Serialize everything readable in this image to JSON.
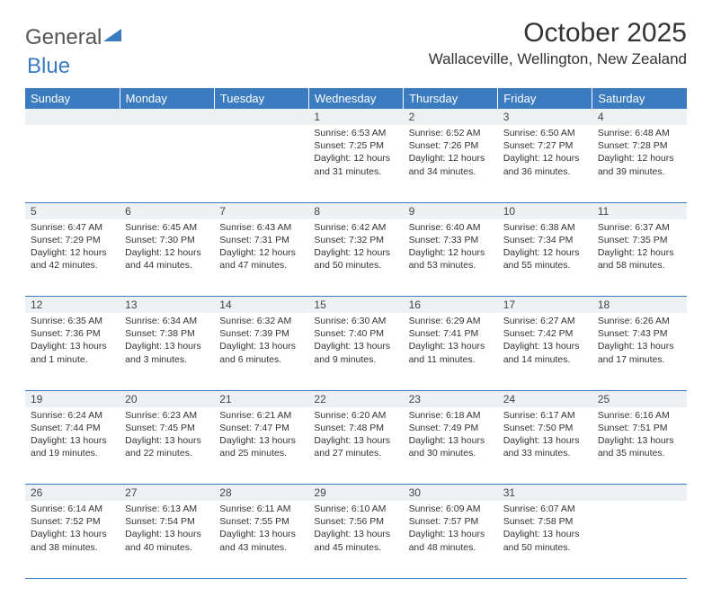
{
  "brand": {
    "part1": "General",
    "part2": "Blue"
  },
  "title": "October 2025",
  "location": "Wallaceville, Wellington, New Zealand",
  "colors": {
    "header_bg": "#3b7bbf",
    "daynum_bg": "#eef1f3",
    "border": "#3b7bbf"
  },
  "weekdays": [
    "Sunday",
    "Monday",
    "Tuesday",
    "Wednesday",
    "Thursday",
    "Friday",
    "Saturday"
  ],
  "weeks": [
    [
      null,
      null,
      null,
      {
        "n": "1",
        "sr": "6:53 AM",
        "ss": "7:25 PM",
        "dl": "12 hours and 31 minutes."
      },
      {
        "n": "2",
        "sr": "6:52 AM",
        "ss": "7:26 PM",
        "dl": "12 hours and 34 minutes."
      },
      {
        "n": "3",
        "sr": "6:50 AM",
        "ss": "7:27 PM",
        "dl": "12 hours and 36 minutes."
      },
      {
        "n": "4",
        "sr": "6:48 AM",
        "ss": "7:28 PM",
        "dl": "12 hours and 39 minutes."
      }
    ],
    [
      {
        "n": "5",
        "sr": "6:47 AM",
        "ss": "7:29 PM",
        "dl": "12 hours and 42 minutes."
      },
      {
        "n": "6",
        "sr": "6:45 AM",
        "ss": "7:30 PM",
        "dl": "12 hours and 44 minutes."
      },
      {
        "n": "7",
        "sr": "6:43 AM",
        "ss": "7:31 PM",
        "dl": "12 hours and 47 minutes."
      },
      {
        "n": "8",
        "sr": "6:42 AM",
        "ss": "7:32 PM",
        "dl": "12 hours and 50 minutes."
      },
      {
        "n": "9",
        "sr": "6:40 AM",
        "ss": "7:33 PM",
        "dl": "12 hours and 53 minutes."
      },
      {
        "n": "10",
        "sr": "6:38 AM",
        "ss": "7:34 PM",
        "dl": "12 hours and 55 minutes."
      },
      {
        "n": "11",
        "sr": "6:37 AM",
        "ss": "7:35 PM",
        "dl": "12 hours and 58 minutes."
      }
    ],
    [
      {
        "n": "12",
        "sr": "6:35 AM",
        "ss": "7:36 PM",
        "dl": "13 hours and 1 minute."
      },
      {
        "n": "13",
        "sr": "6:34 AM",
        "ss": "7:38 PM",
        "dl": "13 hours and 3 minutes."
      },
      {
        "n": "14",
        "sr": "6:32 AM",
        "ss": "7:39 PM",
        "dl": "13 hours and 6 minutes."
      },
      {
        "n": "15",
        "sr": "6:30 AM",
        "ss": "7:40 PM",
        "dl": "13 hours and 9 minutes."
      },
      {
        "n": "16",
        "sr": "6:29 AM",
        "ss": "7:41 PM",
        "dl": "13 hours and 11 minutes."
      },
      {
        "n": "17",
        "sr": "6:27 AM",
        "ss": "7:42 PM",
        "dl": "13 hours and 14 minutes."
      },
      {
        "n": "18",
        "sr": "6:26 AM",
        "ss": "7:43 PM",
        "dl": "13 hours and 17 minutes."
      }
    ],
    [
      {
        "n": "19",
        "sr": "6:24 AM",
        "ss": "7:44 PM",
        "dl": "13 hours and 19 minutes."
      },
      {
        "n": "20",
        "sr": "6:23 AM",
        "ss": "7:45 PM",
        "dl": "13 hours and 22 minutes."
      },
      {
        "n": "21",
        "sr": "6:21 AM",
        "ss": "7:47 PM",
        "dl": "13 hours and 25 minutes."
      },
      {
        "n": "22",
        "sr": "6:20 AM",
        "ss": "7:48 PM",
        "dl": "13 hours and 27 minutes."
      },
      {
        "n": "23",
        "sr": "6:18 AM",
        "ss": "7:49 PM",
        "dl": "13 hours and 30 minutes."
      },
      {
        "n": "24",
        "sr": "6:17 AM",
        "ss": "7:50 PM",
        "dl": "13 hours and 33 minutes."
      },
      {
        "n": "25",
        "sr": "6:16 AM",
        "ss": "7:51 PM",
        "dl": "13 hours and 35 minutes."
      }
    ],
    [
      {
        "n": "26",
        "sr": "6:14 AM",
        "ss": "7:52 PM",
        "dl": "13 hours and 38 minutes."
      },
      {
        "n": "27",
        "sr": "6:13 AM",
        "ss": "7:54 PM",
        "dl": "13 hours and 40 minutes."
      },
      {
        "n": "28",
        "sr": "6:11 AM",
        "ss": "7:55 PM",
        "dl": "13 hours and 43 minutes."
      },
      {
        "n": "29",
        "sr": "6:10 AM",
        "ss": "7:56 PM",
        "dl": "13 hours and 45 minutes."
      },
      {
        "n": "30",
        "sr": "6:09 AM",
        "ss": "7:57 PM",
        "dl": "13 hours and 48 minutes."
      },
      {
        "n": "31",
        "sr": "6:07 AM",
        "ss": "7:58 PM",
        "dl": "13 hours and 50 minutes."
      },
      null
    ]
  ],
  "labels": {
    "sunrise": "Sunrise:",
    "sunset": "Sunset:",
    "daylight": "Daylight:"
  }
}
